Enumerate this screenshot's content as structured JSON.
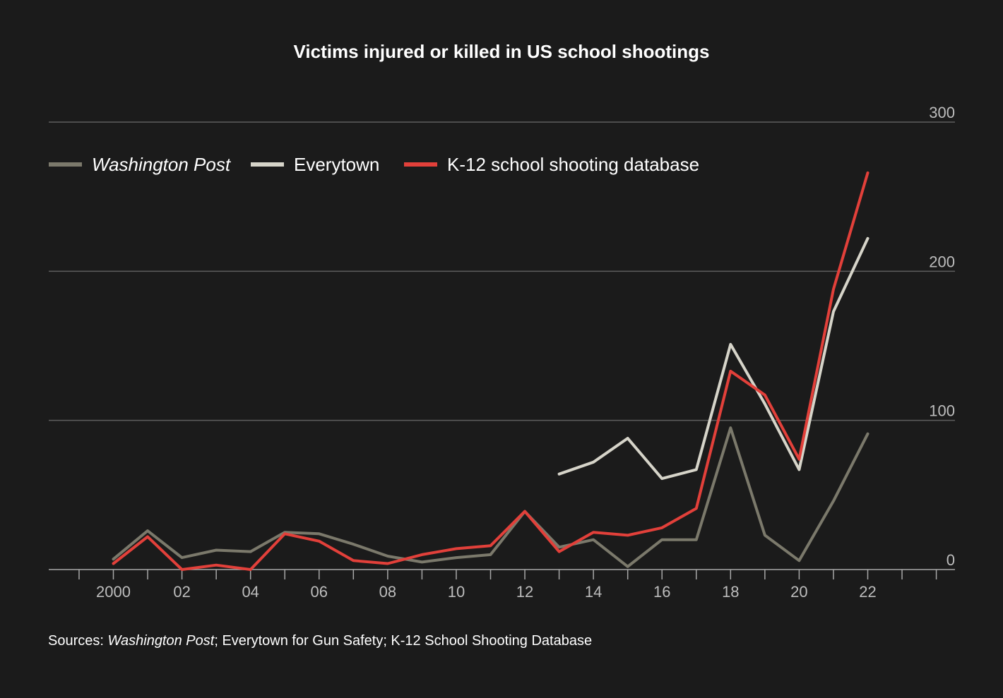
{
  "chart_data": {
    "type": "line",
    "title": "Victims injured or killed in US school shootings",
    "ylim": [
      0,
      300
    ],
    "yticks": [
      0,
      100,
      200,
      300
    ],
    "xlim": [
      1998,
      2025
    ],
    "xticks": [
      {
        "value": 2000,
        "label": "2000"
      },
      {
        "value": 2002,
        "label": "02"
      },
      {
        "value": 2004,
        "label": "04"
      },
      {
        "value": 2006,
        "label": "06"
      },
      {
        "value": 2008,
        "label": "08"
      },
      {
        "value": 2010,
        "label": "10"
      },
      {
        "value": 2012,
        "label": "12"
      },
      {
        "value": 2014,
        "label": "14"
      },
      {
        "value": 2016,
        "label": "16"
      },
      {
        "value": 2018,
        "label": "18"
      },
      {
        "value": 2020,
        "label": "20"
      },
      {
        "value": 2022,
        "label": "22"
      }
    ],
    "grid": true,
    "legend_position": "top-left",
    "series": [
      {
        "name": "Washington Post",
        "italic": true,
        "color": "#7b796b",
        "x": [
          2000,
          2001,
          2002,
          2003,
          2004,
          2005,
          2006,
          2007,
          2008,
          2009,
          2010,
          2011,
          2012,
          2013,
          2014,
          2015,
          2016,
          2017,
          2018,
          2019,
          2020,
          2021,
          2022
        ],
        "y": [
          7,
          26,
          8,
          13,
          12,
          25,
          24,
          17,
          9,
          5,
          8,
          10,
          39,
          15,
          20,
          2,
          20,
          20,
          95,
          23,
          6,
          46,
          91
        ]
      },
      {
        "name": "Everytown",
        "italic": false,
        "color": "#d6d4c9",
        "x": [
          2013,
          2014,
          2015,
          2016,
          2017,
          2018,
          2019,
          2020,
          2021,
          2022
        ],
        "y": [
          64,
          72,
          88,
          61,
          67,
          151,
          111,
          67,
          173,
          222
        ]
      },
      {
        "name": "K-12 school shooting database",
        "italic": false,
        "color": "#e2403a",
        "x": [
          2000,
          2001,
          2002,
          2003,
          2004,
          2005,
          2006,
          2007,
          2008,
          2009,
          2010,
          2011,
          2012,
          2013,
          2014,
          2015,
          2016,
          2017,
          2018,
          2019,
          2020,
          2021,
          2022
        ],
        "y": [
          4,
          22,
          0,
          3,
          0,
          24,
          19,
          6,
          4,
          10,
          14,
          16,
          39,
          12,
          25,
          23,
          28,
          41,
          133,
          117,
          74,
          188,
          266
        ]
      }
    ],
    "source": {
      "prefix": "Sources: ",
      "italic_part": "Washington Post",
      "suffix": "; Everytown for Gun Safety; K-12 School Shooting Database"
    }
  }
}
